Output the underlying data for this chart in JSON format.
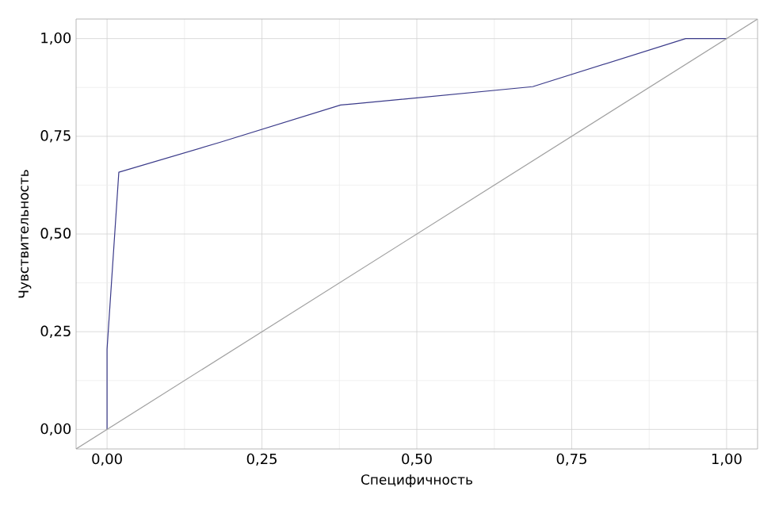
{
  "chart_data": {
    "type": "line",
    "xlabel": "Специфичность",
    "ylabel": "Чувствительность",
    "xlim": [
      -0.05,
      1.05
    ],
    "ylim": [
      -0.05,
      1.05
    ],
    "xticks": [
      {
        "value": 0,
        "label": "0,00"
      },
      {
        "value": 0.25,
        "label": "0,25"
      },
      {
        "value": 0.5,
        "label": "0,50"
      },
      {
        "value": 0.75,
        "label": "0,75"
      },
      {
        "value": 1,
        "label": "1,00"
      }
    ],
    "yticks": [
      {
        "value": 0,
        "label": "0,00"
      },
      {
        "value": 0.25,
        "label": "0,25"
      },
      {
        "value": 0.5,
        "label": "0,50"
      },
      {
        "value": 0.75,
        "label": "0,75"
      },
      {
        "value": 1,
        "label": "1,00"
      }
    ],
    "grid": true,
    "marker": "none",
    "line_style": "solid",
    "series": [
      {
        "color": "#3b3b8a",
        "x": [
          0,
          0,
          0.019,
          0.183,
          0.377,
          0.399,
          0.687,
          0.934,
          1
        ],
        "values": [
          0,
          0.205,
          0.658,
          0.735,
          0.83,
          0.833,
          0.877,
          1,
          1
        ]
      },
      {
        "color": "#a0a0a0",
        "x": [
          -0.05,
          1.05
        ],
        "values": [
          -0.05,
          1.05
        ]
      }
    ]
  }
}
